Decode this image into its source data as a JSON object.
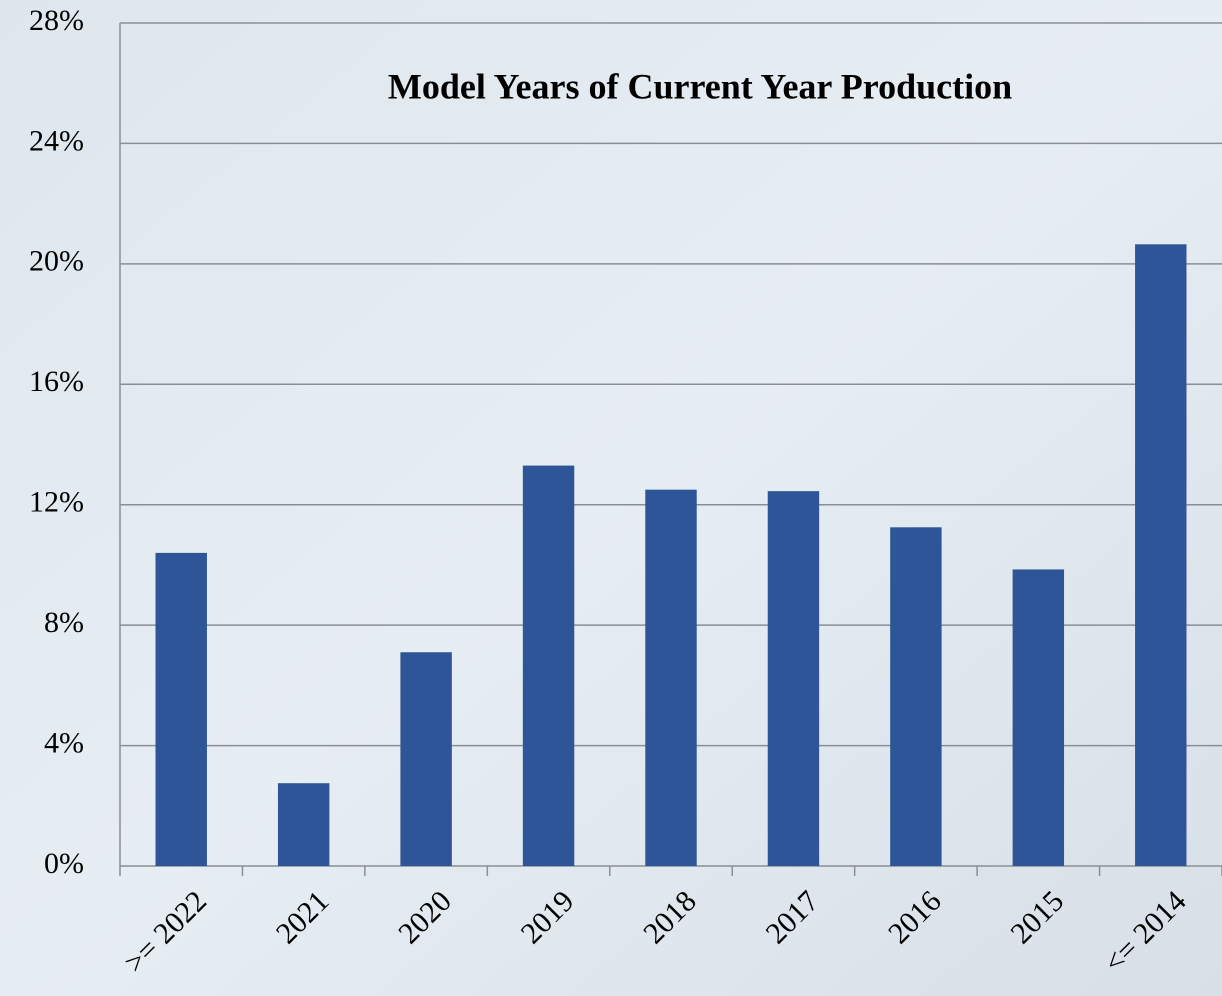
{
  "chart_data": {
    "type": "bar",
    "title": "Model Years of Current Year Production",
    "categories": [
      ">= 2022",
      "2021",
      "2020",
      "2019",
      "2018",
      "2017",
      "2016",
      "2015",
      "<= 2014"
    ],
    "values": [
      10.4,
      2.75,
      7.1,
      13.3,
      12.5,
      12.45,
      11.25,
      9.85,
      20.65
    ],
    "color": "#2e5597",
    "ylim": [
      0,
      28
    ],
    "yticks": [
      {
        "value": 0,
        "label": "0%"
      },
      {
        "value": 4,
        "label": "4%"
      },
      {
        "value": 8,
        "label": "8%"
      },
      {
        "value": 12,
        "label": "12%"
      },
      {
        "value": 16,
        "label": "16%"
      },
      {
        "value": 20,
        "label": "20%"
      },
      {
        "value": 24,
        "label": "24%"
      },
      {
        "value": 28,
        "label": "28%"
      }
    ],
    "grid": true
  }
}
